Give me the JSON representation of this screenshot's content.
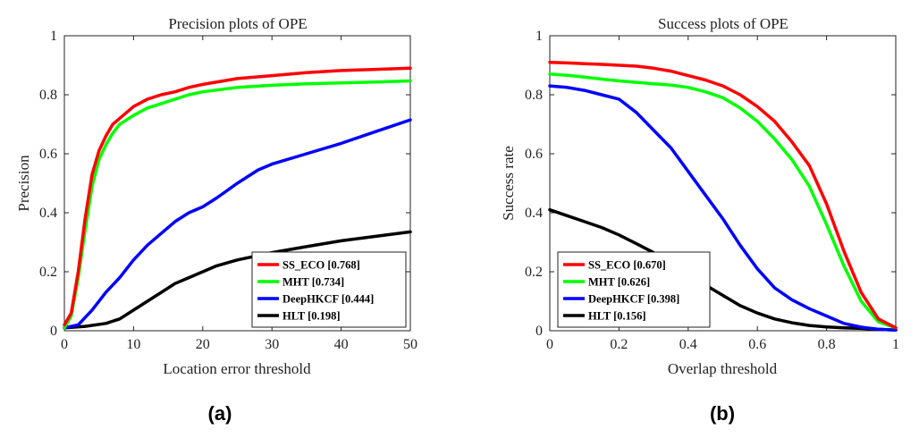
{
  "chart_data": [
    {
      "type": "line",
      "title": "Precision plots of OPE",
      "xlabel": "Location error threshold",
      "ylabel": "Precision",
      "xlim": [
        0,
        50
      ],
      "ylim": [
        0,
        1
      ],
      "xticks": [
        "0",
        "10",
        "20",
        "30",
        "40",
        "50"
      ],
      "yticks": [
        "0",
        "0.2",
        "0.4",
        "0.6",
        "0.8",
        "1"
      ],
      "legend_position": "bottom-right",
      "caption": "(a)",
      "series": [
        {
          "name": "SS_ECO [0.768]",
          "color": "#ff0000",
          "x": [
            0,
            1,
            2,
            3,
            4,
            5,
            6,
            7,
            8,
            10,
            12,
            14,
            16,
            18,
            20,
            25,
            30,
            35,
            40,
            45,
            50
          ],
          "y": [
            0.02,
            0.06,
            0.2,
            0.38,
            0.53,
            0.61,
            0.66,
            0.7,
            0.72,
            0.76,
            0.785,
            0.8,
            0.81,
            0.825,
            0.835,
            0.855,
            0.865,
            0.875,
            0.882,
            0.886,
            0.89
          ]
        },
        {
          "name": "MHT [0.734]",
          "color": "#00ff00",
          "x": [
            0,
            1,
            2,
            3,
            4,
            5,
            6,
            7,
            8,
            10,
            12,
            14,
            16,
            18,
            20,
            25,
            30,
            35,
            40,
            45,
            50
          ],
          "y": [
            0.01,
            0.05,
            0.18,
            0.34,
            0.49,
            0.58,
            0.63,
            0.67,
            0.7,
            0.73,
            0.755,
            0.77,
            0.785,
            0.8,
            0.81,
            0.825,
            0.832,
            0.837,
            0.84,
            0.843,
            0.847
          ]
        },
        {
          "name": "DeepHKCF [0.444]",
          "color": "#0000ff",
          "x": [
            0,
            2,
            4,
            6,
            8,
            10,
            12,
            14,
            16,
            18,
            20,
            22,
            25,
            28,
            30,
            35,
            40,
            45,
            50
          ],
          "y": [
            0.01,
            0.02,
            0.07,
            0.13,
            0.18,
            0.24,
            0.29,
            0.33,
            0.37,
            0.4,
            0.42,
            0.45,
            0.5,
            0.545,
            0.565,
            0.6,
            0.635,
            0.675,
            0.715
          ]
        },
        {
          "name": "HLT [0.198]",
          "color": "#000000",
          "x": [
            0,
            3,
            6,
            8,
            10,
            12,
            14,
            16,
            18,
            20,
            22,
            25,
            28,
            30,
            35,
            40,
            45,
            50
          ],
          "y": [
            0.01,
            0.015,
            0.025,
            0.04,
            0.07,
            0.1,
            0.13,
            0.16,
            0.18,
            0.2,
            0.22,
            0.24,
            0.255,
            0.265,
            0.285,
            0.305,
            0.32,
            0.335
          ]
        }
      ]
    },
    {
      "type": "line",
      "title": "Success plots of OPE",
      "xlabel": "Overlap threshold",
      "ylabel": "Success rate",
      "xlim": [
        0,
        1
      ],
      "ylim": [
        0,
        1
      ],
      "xticks": [
        "0",
        "0.2",
        "0.4",
        "0.6",
        "0.8",
        "1"
      ],
      "yticks": [
        "0",
        "0.2",
        "0.4",
        "0.6",
        "0.8",
        "1"
      ],
      "legend_position": "bottom-left",
      "caption": "(b)",
      "series": [
        {
          "name": "SS_ECO [0.670]",
          "color": "#ff0000",
          "x": [
            0,
            0.05,
            0.1,
            0.15,
            0.2,
            0.25,
            0.3,
            0.35,
            0.4,
            0.45,
            0.5,
            0.55,
            0.6,
            0.65,
            0.7,
            0.75,
            0.8,
            0.85,
            0.9,
            0.95,
            1
          ],
          "y": [
            0.91,
            0.908,
            0.905,
            0.903,
            0.9,
            0.897,
            0.89,
            0.88,
            0.865,
            0.85,
            0.83,
            0.8,
            0.76,
            0.71,
            0.64,
            0.56,
            0.43,
            0.27,
            0.13,
            0.04,
            0.01
          ]
        },
        {
          "name": "MHT [0.626]",
          "color": "#00ff00",
          "x": [
            0,
            0.05,
            0.1,
            0.15,
            0.2,
            0.25,
            0.3,
            0.35,
            0.4,
            0.45,
            0.5,
            0.55,
            0.6,
            0.65,
            0.7,
            0.75,
            0.8,
            0.85,
            0.9,
            0.95,
            1
          ],
          "y": [
            0.87,
            0.866,
            0.86,
            0.853,
            0.847,
            0.842,
            0.837,
            0.833,
            0.825,
            0.81,
            0.79,
            0.755,
            0.71,
            0.65,
            0.58,
            0.49,
            0.36,
            0.22,
            0.1,
            0.03,
            0.01
          ]
        },
        {
          "name": "DeepHKCF [0.398]",
          "color": "#0000ff",
          "x": [
            0,
            0.05,
            0.1,
            0.15,
            0.2,
            0.25,
            0.3,
            0.35,
            0.4,
            0.45,
            0.5,
            0.55,
            0.6,
            0.65,
            0.7,
            0.75,
            0.8,
            0.85,
            0.9,
            0.95,
            1
          ],
          "y": [
            0.83,
            0.825,
            0.815,
            0.8,
            0.785,
            0.74,
            0.68,
            0.62,
            0.54,
            0.46,
            0.38,
            0.29,
            0.21,
            0.145,
            0.105,
            0.075,
            0.05,
            0.025,
            0.012,
            0.005,
            0.002
          ]
        },
        {
          "name": "HLT [0.156]",
          "color": "#000000",
          "x": [
            0,
            0.05,
            0.1,
            0.15,
            0.2,
            0.25,
            0.3,
            0.35,
            0.4,
            0.45,
            0.5,
            0.55,
            0.6,
            0.65,
            0.7,
            0.75,
            0.8,
            0.85,
            0.9,
            0.95,
            1
          ],
          "y": [
            0.41,
            0.39,
            0.37,
            0.35,
            0.325,
            0.295,
            0.265,
            0.23,
            0.19,
            0.155,
            0.12,
            0.085,
            0.06,
            0.04,
            0.027,
            0.018,
            0.013,
            0.01,
            0.008,
            0.005,
            0.002
          ]
        }
      ]
    }
  ]
}
